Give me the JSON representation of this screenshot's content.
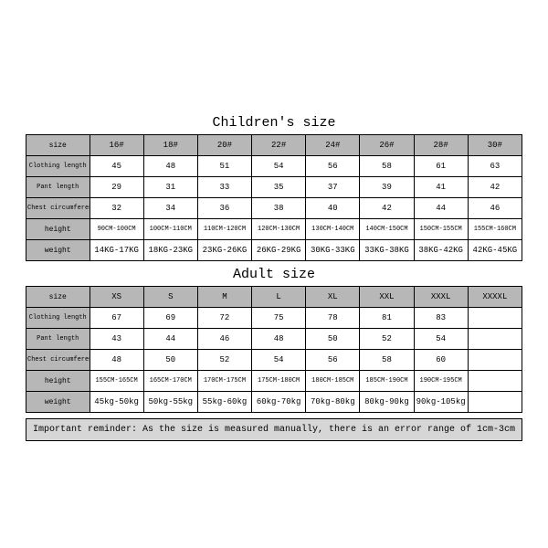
{
  "colors": {
    "header_bg": "#b7b7b7",
    "note_bg": "#d6d6d6",
    "border": "#000000",
    "text": "#000000",
    "page_bg": "#ffffff"
  },
  "typography": {
    "font_family": "Courier New, monospace",
    "title_fontsize_pt": 11,
    "cell_fontsize_pt": 7,
    "note_fontsize_pt": 8
  },
  "children": {
    "title": "Children's size",
    "row_labels": [
      "size",
      "Clothing length",
      "Pant length",
      "Chest circumference 1/2",
      "height",
      "weight"
    ],
    "columns": [
      "16#",
      "18#",
      "20#",
      "22#",
      "24#",
      "26#",
      "28#",
      "30#"
    ],
    "rows": {
      "clothing_length": [
        "45",
        "48",
        "51",
        "54",
        "56",
        "58",
        "61",
        "63"
      ],
      "pant_length": [
        "29",
        "31",
        "33",
        "35",
        "37",
        "39",
        "41",
        "42"
      ],
      "chest_half": [
        "32",
        "34",
        "36",
        "38",
        "40",
        "42",
        "44",
        "46"
      ],
      "height": [
        "90CM-100CM",
        "100CM-110CM",
        "110CM-120CM",
        "120CM-130CM",
        "130CM-140CM",
        "140CM-150CM",
        "150CM-155CM",
        "155CM-160CM"
      ],
      "weight": [
        "14KG-17KG",
        "18KG-23KG",
        "23KG-26KG",
        "26KG-29KG",
        "30KG-33KG",
        "33KG-38KG",
        "38KG-42KG",
        "42KG-45KG"
      ]
    }
  },
  "adult": {
    "title": "Adult size",
    "row_labels": [
      "size",
      "Clothing length",
      "Pant length",
      "Chest circumference 1/2",
      "height",
      "weight"
    ],
    "columns": [
      "XS",
      "S",
      "M",
      "L",
      "XL",
      "XXL",
      "XXXL",
      "XXXXL"
    ],
    "rows": {
      "clothing_length": [
        "67",
        "69",
        "72",
        "75",
        "78",
        "81",
        "83",
        ""
      ],
      "pant_length": [
        "43",
        "44",
        "46",
        "48",
        "50",
        "52",
        "54",
        ""
      ],
      "chest_half": [
        "48",
        "50",
        "52",
        "54",
        "56",
        "58",
        "60",
        ""
      ],
      "height": [
        "155CM-165CM",
        "165CM-170CM",
        "170CM-175CM",
        "175CM-180CM",
        "180CM-185CM",
        "185CM-190CM",
        "190CM-195CM",
        ""
      ],
      "weight": [
        "45kg-50kg",
        "50kg-55kg",
        "55kg-60kg",
        "60kg-70kg",
        "70kg-80kg",
        "80kg-90kg",
        "90kg-105kg",
        ""
      ]
    }
  },
  "note": "Important reminder: As the size is measured manually, there is an error range of 1cm-3cm"
}
